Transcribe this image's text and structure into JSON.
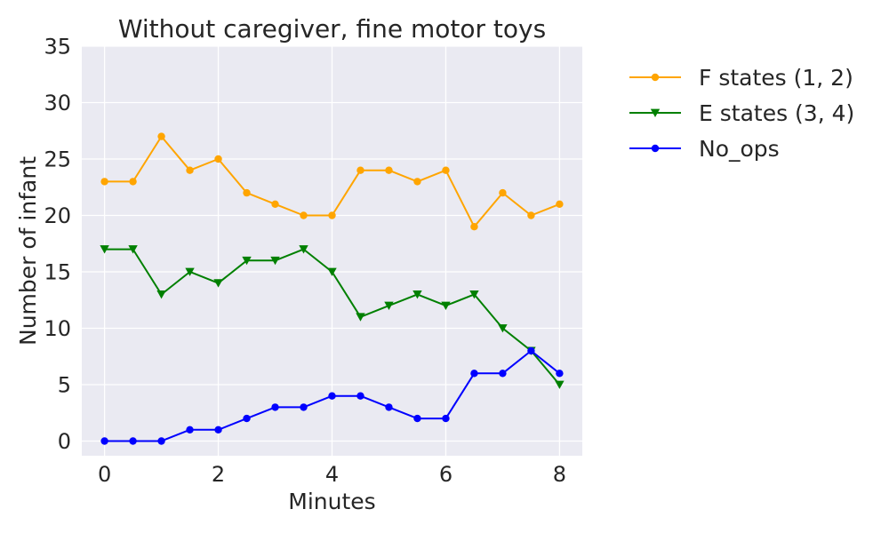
{
  "chart_data": {
    "type": "line",
    "title": "Without caregiver, fine motor toys",
    "xlabel": "Minutes",
    "ylabel": "Number of infant",
    "xlim": [
      -0.4,
      8.4
    ],
    "ylim": [
      -1.3,
      35
    ],
    "xticks": [
      0,
      2,
      4,
      6,
      8
    ],
    "yticks": [
      0,
      5,
      10,
      15,
      20,
      25,
      30,
      35
    ],
    "grid": true,
    "legend_position": "outside-right",
    "x": [
      0,
      0.5,
      1,
      1.5,
      2,
      2.5,
      3,
      3.5,
      4,
      4.5,
      5,
      5.5,
      6,
      6.5,
      7,
      7.5,
      8
    ],
    "series": [
      {
        "name": "F states (1, 2)",
        "color": "#ffa500",
        "marker": "circle",
        "values": [
          23,
          23,
          27,
          24,
          25,
          22,
          21,
          20,
          20,
          24,
          24,
          23,
          24,
          19,
          22,
          20,
          21
        ]
      },
      {
        "name": "E states (3, 4)",
        "color": "#008000",
        "marker": "triangle-down",
        "values": [
          17,
          17,
          13,
          15,
          14,
          16,
          16,
          17,
          15,
          11,
          12,
          13,
          12,
          13,
          10,
          8,
          5
        ]
      },
      {
        "name": "No_ops",
        "color": "#0000ff",
        "marker": "circle",
        "values": [
          0,
          0,
          0,
          1,
          1,
          2,
          3,
          3,
          4,
          4,
          3,
          2,
          2,
          6,
          6,
          8,
          6
        ]
      }
    ]
  },
  "style": {
    "plot_background": "#eaeaf2",
    "grid_color": "#ffffff",
    "text_color": "#262626"
  }
}
